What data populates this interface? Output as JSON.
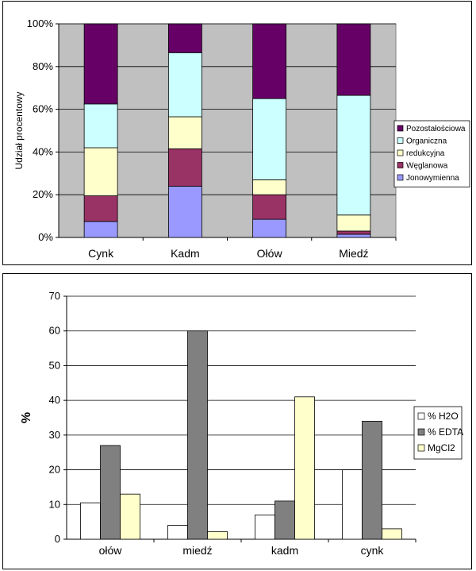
{
  "chart_data": [
    {
      "type": "bar",
      "stacked": "percent",
      "ylabel": "Udział procentowy",
      "ylim": [
        0,
        100
      ],
      "yticks": [
        "0%",
        "20%",
        "40%",
        "60%",
        "80%",
        "100%"
      ],
      "categories": [
        "Cynk",
        "Kadm",
        "Ołów",
        "Miedź"
      ],
      "grid": true,
      "legend": "right",
      "series": [
        {
          "name": "Jonowymienna",
          "values": [
            7.5,
            24,
            8.5,
            1.5
          ],
          "color": "#9999ff"
        },
        {
          "name": "Węglanowa",
          "values": [
            12,
            17.5,
            11.5,
            1.5
          ],
          "color": "#993366"
        },
        {
          "name": "redukcyjna",
          "values": [
            22.5,
            15,
            7,
            7.5
          ],
          "color": "#ffffcc"
        },
        {
          "name": "Organiczna",
          "values": [
            20.5,
            30,
            38,
            56
          ],
          "color": "#ccffff"
        },
        {
          "name": "Pozostałościowa",
          "values": [
            37.5,
            13.5,
            35,
            33.5
          ],
          "color": "#660066"
        }
      ],
      "legend_order": [
        "Pozostałościowa",
        "Organiczna",
        "redukcyjna",
        "Węglanowa",
        "Jonowymienna"
      ],
      "plot_background": "#c0c0c0"
    },
    {
      "type": "bar",
      "ylabel": "%",
      "ylim": [
        0,
        70
      ],
      "yticks": [
        "0",
        "10",
        "20",
        "30",
        "40",
        "50",
        "60",
        "70"
      ],
      "categories": [
        "ołów",
        "miedź",
        "kadm",
        "cynk"
      ],
      "grid": true,
      "legend": "right",
      "series": [
        {
          "name": "% H2O",
          "values": [
            10.5,
            4,
            7,
            20
          ],
          "color": "#ffffff"
        },
        {
          "name": "% EDTA",
          "values": [
            27,
            60,
            11,
            34
          ],
          "color": "#808080"
        },
        {
          "name": "MgCl2",
          "values": [
            13,
            2.2,
            41,
            3
          ],
          "color": "#ffffcc"
        }
      ],
      "plot_background": "#ffffff"
    }
  ]
}
